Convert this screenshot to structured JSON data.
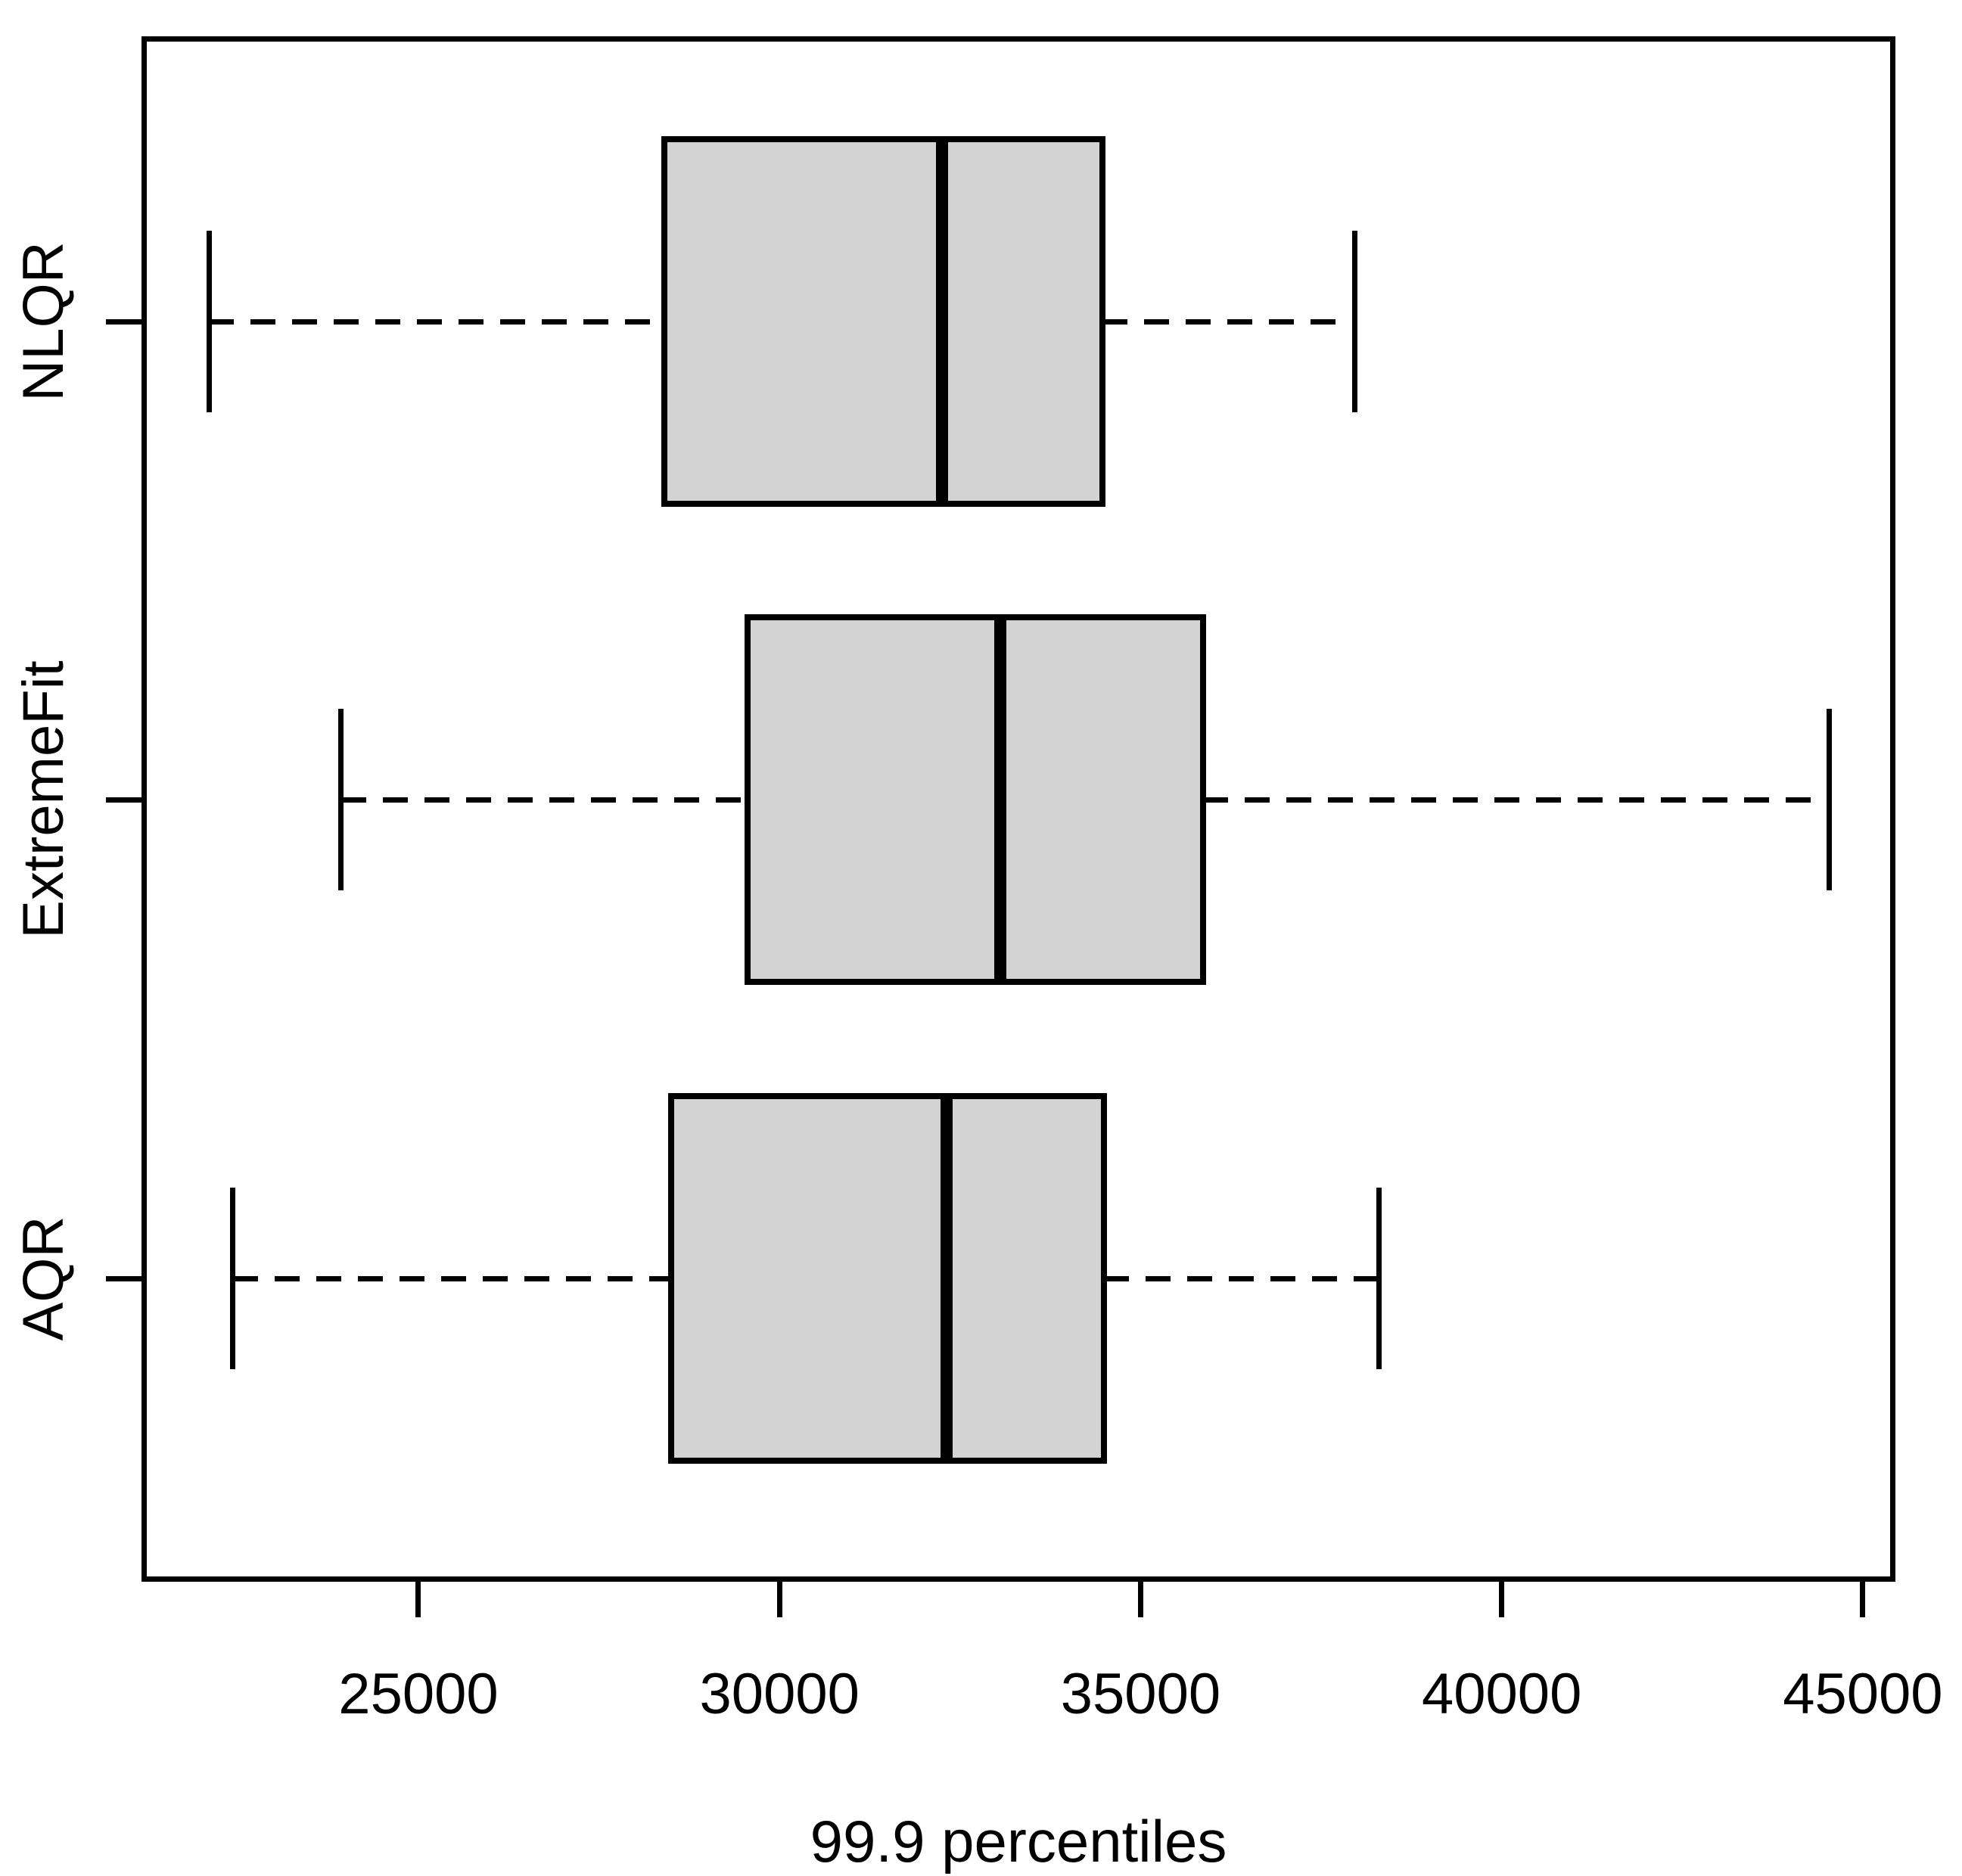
{
  "chart_data": {
    "type": "boxplot",
    "orientation": "horizontal",
    "title": "",
    "xlabel": "99.9 percentiles",
    "x_axis": {
      "min": 21197,
      "max": 45420,
      "ticks": [
        25000,
        30000,
        35000,
        40000,
        45000
      ],
      "tick_labels": [
        "25000",
        "30000",
        "35000",
        "40000",
        "45000"
      ]
    },
    "order_top_to_bottom": [
      "NLQR",
      "ExtremeFit",
      "AQR"
    ],
    "series": [
      {
        "label": "NLQR",
        "whisker_low": 22100,
        "q1": 28400,
        "median": 32250,
        "q3": 34470,
        "whisker_high": 37970
      },
      {
        "label": "ExtremeFit",
        "whisker_low": 23930,
        "q1": 29560,
        "median": 33060,
        "q3": 35870,
        "whisker_high": 44530
      },
      {
        "label": "AQR",
        "whisker_low": 22430,
        "q1": 28500,
        "median": 32310,
        "q3": 34490,
        "whisker_high": 38300
      }
    ],
    "style": {
      "box_fill": "#d3d3d3",
      "stroke": "#000000",
      "background": "#ffffff",
      "whisker_line_style": "dashed",
      "grid": "off",
      "legend": "none"
    }
  }
}
